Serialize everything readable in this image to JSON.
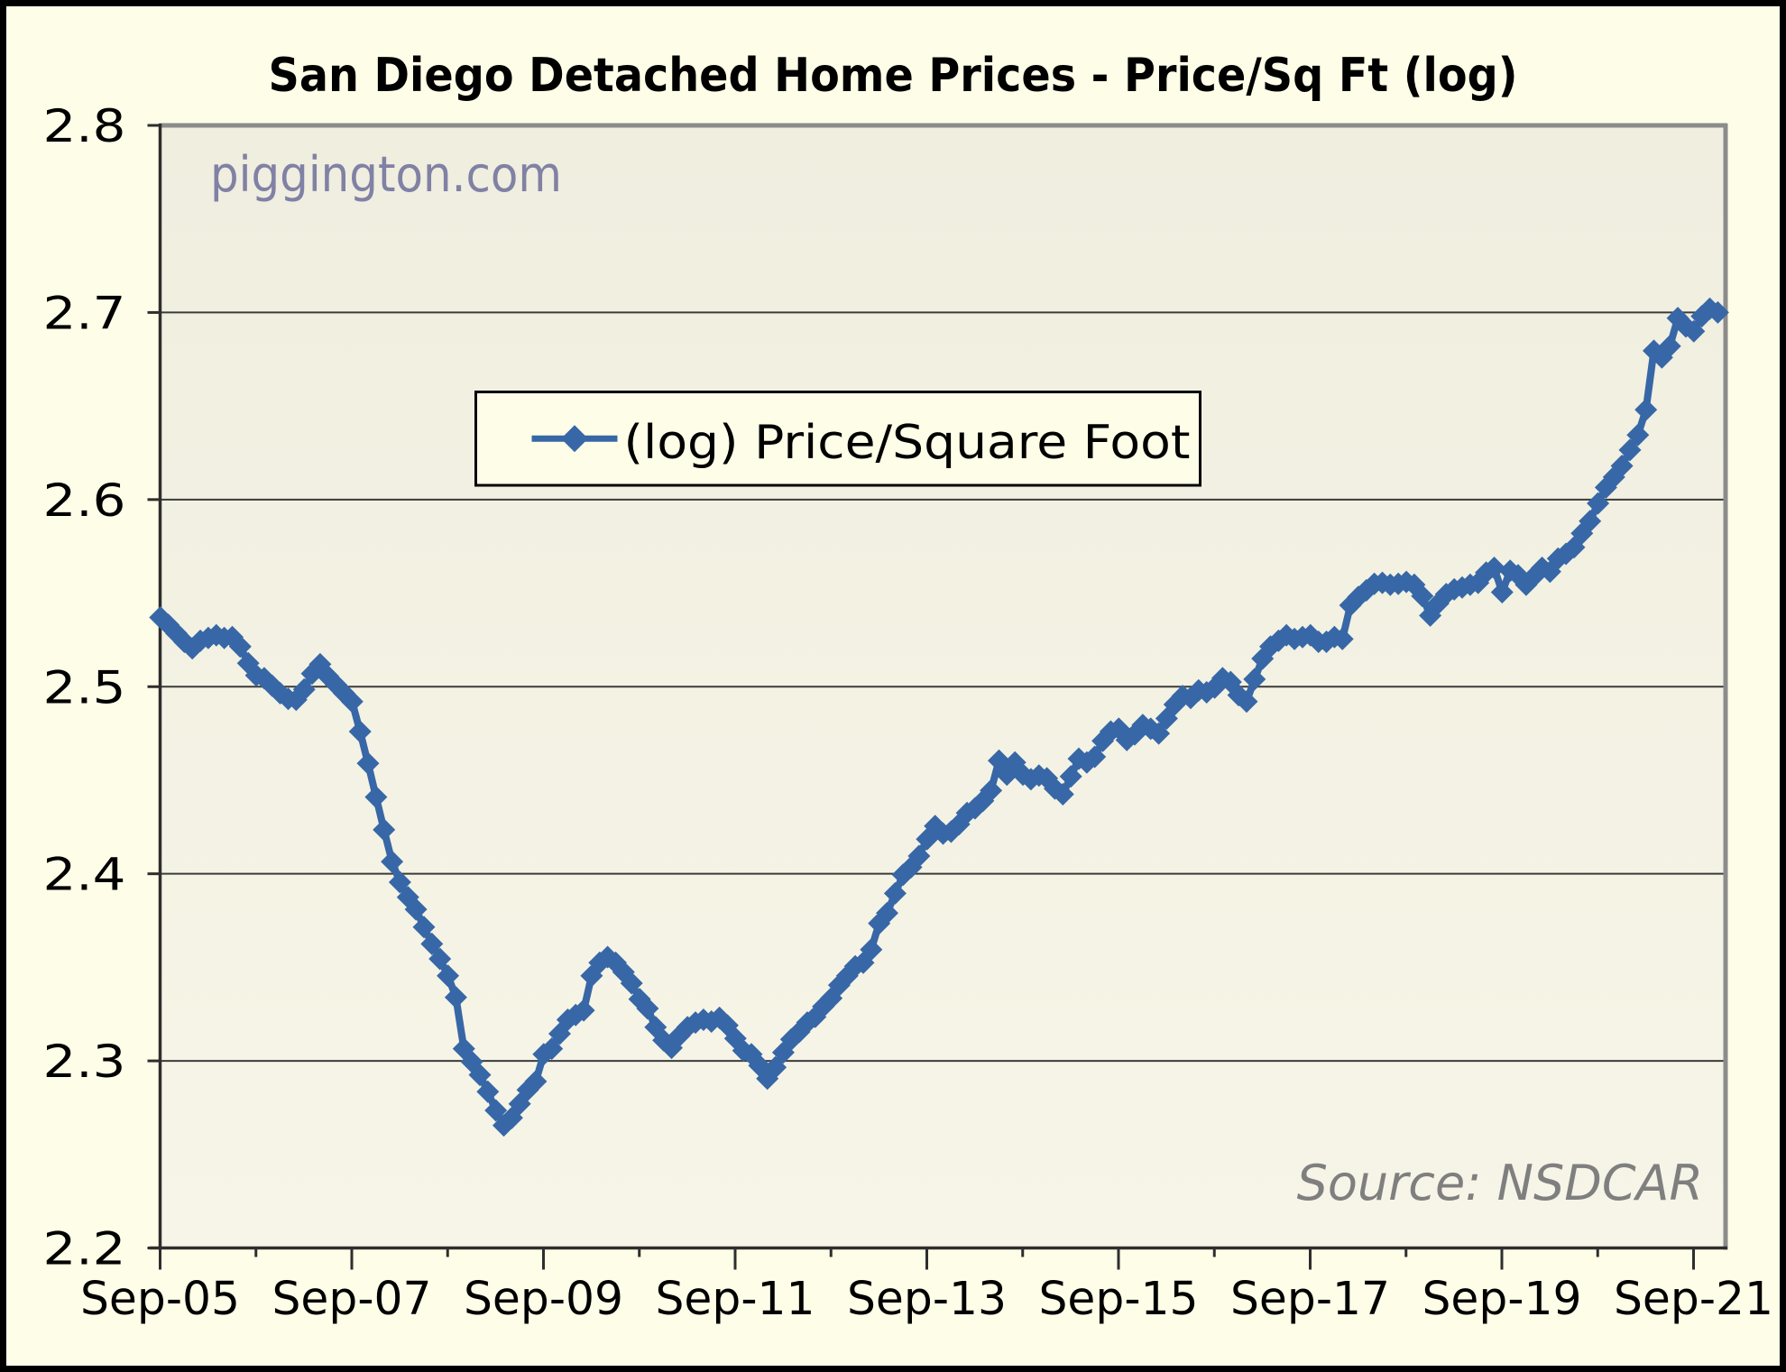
{
  "chart_data": {
    "type": "line",
    "title": "San Diego Detached Home Prices - Price/Sq Ft (log)",
    "watermark": "piggington.com",
    "source_note": "Source: NSDCAR",
    "legend": [
      {
        "label": "(log) Price/Square Foot",
        "marker": "diamond"
      }
    ],
    "legend_position": "inside-top-center",
    "grid": "horizontal",
    "ylim": [
      2.2,
      2.8
    ],
    "y_tick_step": 0.1,
    "y_tick_labels": [
      "2.2",
      "2.3",
      "2.4",
      "2.5",
      "2.6",
      "2.7",
      "2.8"
    ],
    "x_tick_labels": [
      "Sep-05",
      "Sep-07",
      "Sep-09",
      "Sep-11",
      "Sep-13",
      "Sep-15",
      "Sep-17",
      "Sep-19",
      "Sep-21"
    ],
    "x_minor_tick_every_months": 12,
    "x_major_tick_every_months": 24,
    "start_month": "Sep-05",
    "end_month": "Dec-21",
    "series": [
      {
        "name": "(log) Price/Square Foot",
        "values": [
          2.537,
          2.533,
          2.5285,
          2.524,
          2.5205,
          2.5245,
          2.526,
          2.5275,
          2.526,
          2.5265,
          2.5215,
          2.5125,
          2.506,
          2.5045,
          2.5005,
          2.4965,
          2.4935,
          2.493,
          2.4985,
          2.507,
          2.512,
          2.5055,
          2.501,
          2.4965,
          2.492,
          2.476,
          2.459,
          2.441,
          2.4235,
          2.4065,
          2.3955,
          2.3875,
          2.381,
          2.3715,
          2.3625,
          2.3545,
          2.3455,
          2.334,
          2.3065,
          2.2995,
          2.2925,
          2.2835,
          2.2735,
          2.2655,
          2.2695,
          2.277,
          2.2845,
          2.289,
          2.3035,
          2.3065,
          2.3145,
          2.322,
          2.3245,
          2.327,
          2.3455,
          2.3525,
          2.3555,
          2.3525,
          2.3475,
          2.3415,
          2.333,
          2.328,
          2.318,
          2.311,
          2.307,
          2.3135,
          2.318,
          2.3205,
          2.322,
          2.321,
          2.323,
          2.319,
          2.312,
          2.3055,
          2.3035,
          2.2975,
          2.2905,
          2.2965,
          2.3045,
          2.3115,
          2.3155,
          2.3205,
          2.3235,
          2.329,
          2.3335,
          2.3405,
          2.3455,
          2.3505,
          2.3525,
          2.3595,
          2.3735,
          2.379,
          2.3895,
          2.3995,
          2.4035,
          2.4095,
          2.4185,
          2.4255,
          2.4215,
          2.4225,
          2.4265,
          2.4325,
          2.435,
          2.439,
          2.4445,
          2.4605,
          2.453,
          2.4595,
          2.453,
          2.4505,
          2.4525,
          2.451,
          2.4455,
          2.4425,
          2.452,
          2.4615,
          2.4595,
          2.4625,
          2.471,
          2.476,
          2.4775,
          2.4715,
          2.4745,
          2.4795,
          2.4775,
          2.475,
          2.483,
          2.4905,
          2.495,
          2.494,
          2.498,
          2.497,
          2.4995,
          2.5045,
          2.5025,
          2.4955,
          2.492,
          2.504,
          2.515,
          2.5215,
          2.5245,
          2.5275,
          2.5255,
          2.5265,
          2.5275,
          2.524,
          2.524,
          2.5265,
          2.5255,
          2.5435,
          2.548,
          2.5515,
          2.555,
          2.5555,
          2.5545,
          2.555,
          2.556,
          2.5545,
          2.5485,
          2.538,
          2.5445,
          2.5495,
          2.552,
          2.553,
          2.5545,
          2.5555,
          2.561,
          2.5635,
          2.5505,
          2.562,
          2.5595,
          2.5545,
          2.559,
          2.5635,
          2.5615,
          2.5685,
          2.571,
          2.5745,
          2.582,
          2.5885,
          2.598,
          2.6065,
          2.612,
          2.618,
          2.6265,
          2.6345,
          2.648,
          2.6795,
          2.676,
          2.682,
          2.697,
          2.6925,
          2.69,
          2.698,
          2.702,
          2.7
        ]
      }
    ],
    "colors": {
      "series": "#3767A6",
      "outer_background": "#FEFEE8",
      "plot_background_top": "#EFEEDF",
      "plot_background_bottom": "#F7F5E7",
      "gridline": "#3B3B3B",
      "axis": "#2E2E2E",
      "plot_border_topright": "#8C8C8C",
      "watermark": "#8181A5",
      "source_note": "#7F7F7F",
      "text": "#000000",
      "outer_border": "#000000",
      "legend_background": "#FEFEE8"
    }
  }
}
